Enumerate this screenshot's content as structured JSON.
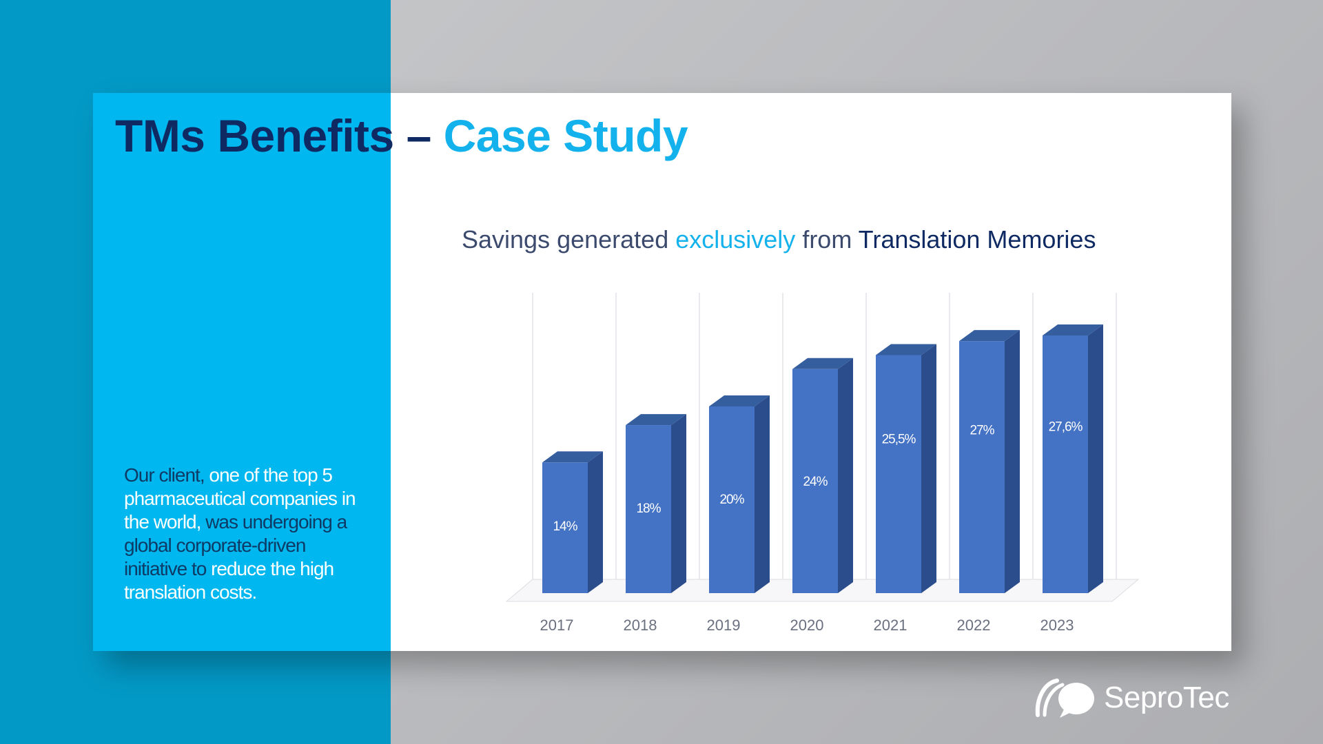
{
  "slide": {
    "title_main": "TMs Benefits –",
    "title_accent": "Case Study",
    "intro": {
      "p1": "Our client,",
      "p2": "one of the top 5 pharmaceutical companies in the world,",
      "p3": "was undergoing a global corporate-driven initiative to",
      "p4": "reduce the high translation costs."
    }
  },
  "chart_title": {
    "part1": "Savings generated",
    "part2": "exclusively",
    "part3": "from",
    "part4": "Translation Memories"
  },
  "chart_data": {
    "type": "bar",
    "style": "3d-column",
    "categories": [
      "2017",
      "2018",
      "2019",
      "2020",
      "2021",
      "2022",
      "2023"
    ],
    "values": [
      14,
      18,
      20,
      24,
      25.5,
      27,
      27.6
    ],
    "value_labels": [
      "14%",
      "18%",
      "20%",
      "24%",
      "25,5%",
      "27%",
      "27,6%"
    ],
    "unit": "%",
    "ylim": [
      0,
      30
    ],
    "grid": true,
    "legend": false,
    "colors": {
      "front": "#4472c4",
      "side": "#2b4d8c",
      "top": "#355e9f"
    }
  },
  "logo": {
    "text": "SeproTec",
    "icon": "seprotec-logo-icon"
  }
}
